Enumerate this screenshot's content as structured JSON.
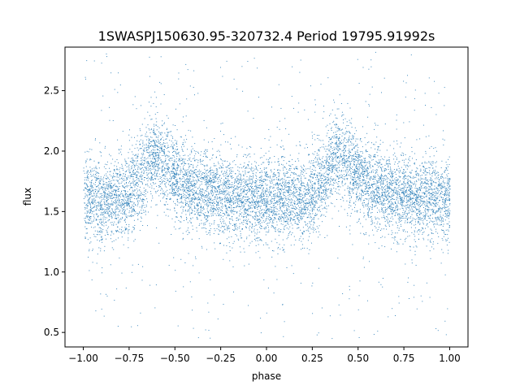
{
  "chart_data": {
    "type": "scatter",
    "title": "1SWASPJ150630.95-320732.4 Period 19795.91992s",
    "xlabel": "phase",
    "ylabel": "flux",
    "xlim": [
      -1.1,
      1.1
    ],
    "ylim": [
      0.38,
      2.86
    ],
    "xticks": [
      -1.0,
      -0.75,
      -0.5,
      -0.25,
      0.0,
      0.25,
      0.5,
      0.75,
      1.0
    ],
    "xtick_labels": [
      "−1.00",
      "−0.75",
      "−0.50",
      "−0.25",
      "0.00",
      "0.25",
      "0.50",
      "0.75",
      "1.00"
    ],
    "yticks": [
      0.5,
      1.0,
      1.5,
      2.0,
      2.5
    ],
    "ytick_labels": [
      "0.5",
      "1.0",
      "1.5",
      "2.0",
      "2.5"
    ],
    "grid": false,
    "legend": "none",
    "marker_color": "#1f77b4",
    "phase_range": [
      -1.0,
      1.0
    ],
    "flux_range": [
      0.45,
      2.83
    ],
    "profile": {
      "phase": [
        -1.0,
        -0.9,
        -0.8,
        -0.75,
        -0.7,
        -0.65,
        -0.6,
        -0.55,
        -0.5,
        -0.45,
        -0.4,
        -0.3,
        -0.2,
        -0.1,
        0.0,
        0.1,
        0.2,
        0.25,
        0.3,
        0.35,
        0.4,
        0.45,
        0.5,
        0.55,
        0.6,
        0.7,
        0.8,
        0.9,
        1.0
      ],
      "flux_center": [
        1.6,
        1.6,
        1.62,
        1.65,
        1.75,
        1.92,
        1.98,
        1.9,
        1.8,
        1.72,
        1.68,
        1.65,
        1.63,
        1.62,
        1.6,
        1.6,
        1.6,
        1.65,
        1.75,
        1.92,
        1.98,
        1.9,
        1.8,
        1.72,
        1.68,
        1.65,
        1.63,
        1.62,
        1.6
      ]
    },
    "scatter_sigma": 0.17
  }
}
